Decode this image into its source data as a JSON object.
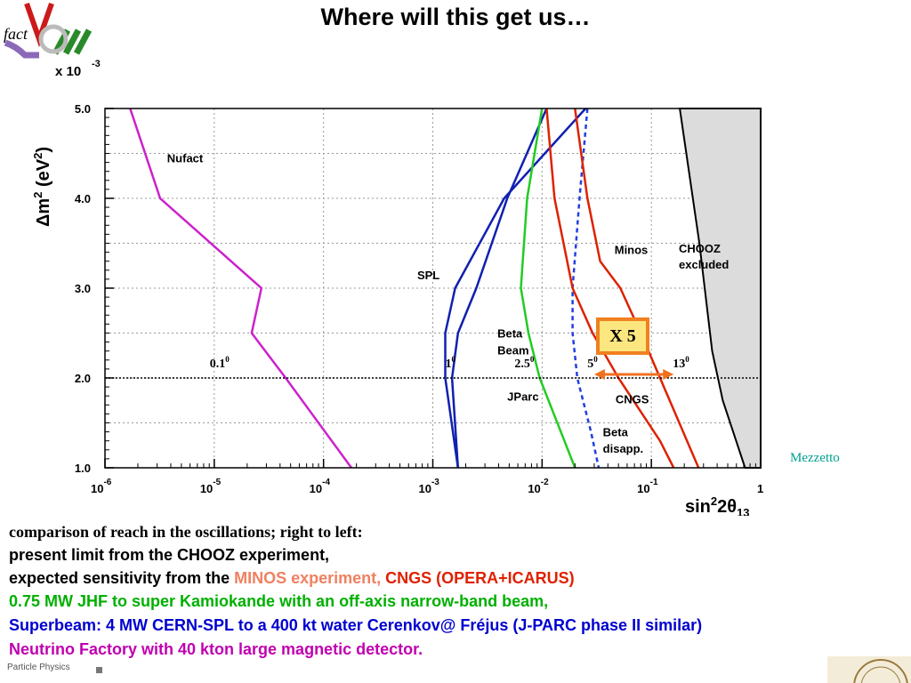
{
  "slide": {
    "title": "Where will this get us…",
    "credit": "Mezzetto",
    "footer": "Particle Physics"
  },
  "caption": {
    "line0": "comparison of reach in the  oscillations; right to left:",
    "line1": "present limit from the CHOOZ experiment,",
    "line2_a": "expected sensitivity from the ",
    "line2_b": "MINOS experiment, ",
    "line2_c": "CNGS (OPERA+ICARUS)",
    "line3": "0.75 MW JHF to super Kamiokande with an off-axis narrow-band beam,",
    "line4": "Superbeam: 4 MW CERN-SPL to a 400 kt water Cerenkov@ Fréjus (J-PARC phase II similar)",
    "line5": "Neutrino Factory with 40 kton large magnetic detector.",
    "colors": {
      "minos": "#f08060",
      "cngs": "#e02000",
      "jparc": "#00b000",
      "spl": "#0000d0",
      "nufact": "#c000b0"
    }
  },
  "chart_data": {
    "type": "line",
    "xlabel_parts": {
      "pre": "sin",
      "sup": "2",
      "mid": "2θ",
      "sub": "13"
    },
    "ylabel_parts": {
      "pre": "Δm",
      "sup1": "2",
      "mid": " (eV",
      "sup2": "2",
      "post": ")"
    },
    "y_exponent_prefix": "x 10",
    "y_exponent_sup": "-3",
    "x_scale": "log",
    "xlim": [
      1e-06,
      1
    ],
    "ylim": [
      1.0,
      5.0
    ],
    "grid": true,
    "x_ticks": [
      {
        "v": 1e-06,
        "base": "10",
        "exp": "-6"
      },
      {
        "v": 1e-05,
        "base": "10",
        "exp": "-5"
      },
      {
        "v": 0.0001,
        "base": "10",
        "exp": "-4"
      },
      {
        "v": 0.001,
        "base": "10",
        "exp": "-3"
      },
      {
        "v": 0.01,
        "base": "10",
        "exp": "-2"
      },
      {
        "v": 0.1,
        "base": "10",
        "exp": "-1"
      },
      {
        "v": 1,
        "base": "1",
        "exp": ""
      }
    ],
    "y_ticks": [
      {
        "v": 1.0,
        "label": "1.0"
      },
      {
        "v": 2.0,
        "label": "2.0"
      },
      {
        "v": 3.0,
        "label": "3.0"
      },
      {
        "v": 4.0,
        "label": "4.0"
      },
      {
        "v": 5.0,
        "label": "5.0"
      }
    ],
    "reference_line_y": 2.0,
    "excluded_region": {
      "label1": "CHOOZ",
      "label2": "excluded",
      "boundary": [
        [
          0.182,
          5.0
        ],
        [
          0.275,
          3.5
        ],
        [
          0.36,
          2.3
        ],
        [
          0.45,
          1.75
        ],
        [
          0.72,
          1.0
        ]
      ]
    },
    "series": [
      {
        "id": "nufact",
        "name": "Nufact",
        "color": "#cc22cc",
        "style": "solid",
        "points": [
          [
            1.7e-06,
            5.0
          ],
          [
            3.2e-06,
            4.0
          ],
          [
            2.7e-05,
            3.0
          ],
          [
            2.2e-05,
            2.5
          ],
          [
            4.5e-05,
            2.0
          ],
          [
            0.00018,
            1.0
          ]
        ]
      },
      {
        "id": "spl",
        "name": "SPL",
        "color": "#1020b0",
        "style": "solid",
        "points": [
          [
            0.011,
            5.0
          ],
          [
            0.0048,
            4.0
          ],
          [
            0.0025,
            3.0
          ],
          [
            0.0017,
            2.5
          ],
          [
            0.0015,
            2.0
          ],
          [
            0.0017,
            1.0
          ]
        ]
      },
      {
        "id": "beta-beam",
        "name": "Beta Beam",
        "color": "#1020b0",
        "style": "solid",
        "points": [
          [
            0.025,
            5.0
          ],
          [
            0.0045,
            4.0
          ],
          [
            0.0016,
            3.0
          ],
          [
            0.0013,
            2.5
          ],
          [
            0.0013,
            2.0
          ],
          [
            0.0017,
            1.0
          ]
        ]
      },
      {
        "id": "jparc",
        "name": "JParc",
        "color": "#22cc22",
        "style": "solid",
        "points": [
          [
            0.01,
            5.0
          ],
          [
            0.0073,
            4.0
          ],
          [
            0.0064,
            3.0
          ],
          [
            0.0075,
            2.5
          ],
          [
            0.0095,
            2.0
          ],
          [
            0.016,
            1.3
          ],
          [
            0.02,
            1.0
          ]
        ]
      },
      {
        "id": "beta-disapp",
        "name": "Beta disapp.",
        "color": "#2040e0",
        "style": "dashed",
        "points": [
          [
            0.026,
            5.0
          ],
          [
            0.022,
            4.0
          ],
          [
            0.019,
            3.0
          ],
          [
            0.019,
            2.5
          ],
          [
            0.021,
            2.0
          ],
          [
            0.028,
            1.4
          ],
          [
            0.033,
            1.0
          ]
        ]
      },
      {
        "id": "cngs",
        "name": "CNGS",
        "color": "#dd2200",
        "style": "solid",
        "points": [
          [
            0.011,
            5.0
          ],
          [
            0.013,
            4.0
          ],
          [
            0.019,
            3.0
          ],
          [
            0.029,
            2.5
          ],
          [
            0.05,
            2.0
          ],
          [
            0.12,
            1.3
          ],
          [
            0.16,
            1.0
          ]
        ]
      },
      {
        "id": "minos",
        "name": "Minos",
        "color": "#dd2200",
        "style": "solid",
        "points": [
          [
            0.02,
            5.0
          ],
          [
            0.026,
            4.0
          ],
          [
            0.034,
            3.3
          ],
          [
            0.052,
            3.0
          ],
          [
            0.08,
            2.5
          ],
          [
            0.12,
            2.0
          ],
          [
            0.27,
            1.0
          ]
        ]
      }
    ],
    "annotations": [
      {
        "id": "nufact",
        "text": "Nufact",
        "x": 3.7e-06,
        "y": 4.4
      },
      {
        "id": "spl",
        "text": "SPL",
        "x": 0.00072,
        "y": 3.1
      },
      {
        "id": "beta1",
        "text": "Beta",
        "x": 0.0039,
        "y": 2.45
      },
      {
        "id": "beta2",
        "text": "Beam",
        "x": 0.0039,
        "y": 2.26
      },
      {
        "id": "jparc",
        "text": "JParc",
        "x": 0.0048,
        "y": 1.75
      },
      {
        "id": "cngs",
        "text": "CNGS",
        "x": 0.047,
        "y": 1.72
      },
      {
        "id": "minos",
        "text": "Minos",
        "x": 0.046,
        "y": 3.38
      },
      {
        "id": "bdis1",
        "text": "Beta",
        "x": 0.036,
        "y": 1.35
      },
      {
        "id": "bdis2",
        "text": "disapp.",
        "x": 0.036,
        "y": 1.17
      }
    ],
    "angle_labels": [
      {
        "base": "0.1",
        "sup": "0",
        "x": 9.1e-06,
        "y": 2.12
      },
      {
        "base": "1",
        "sup": "0",
        "x": 0.0013,
        "y": 2.12
      },
      {
        "base": "2.5",
        "sup": "0",
        "x": 0.0056,
        "y": 2.12
      },
      {
        "base": "5",
        "sup": "0",
        "x": 0.026,
        "y": 2.12
      },
      {
        "base": "13",
        "sup": "0",
        "x": 0.157,
        "y": 2.12
      }
    ],
    "improvement_label": "X 5",
    "improvement_arrow": {
      "from": 0.03,
      "to": 0.16,
      "y": 2.04
    }
  }
}
